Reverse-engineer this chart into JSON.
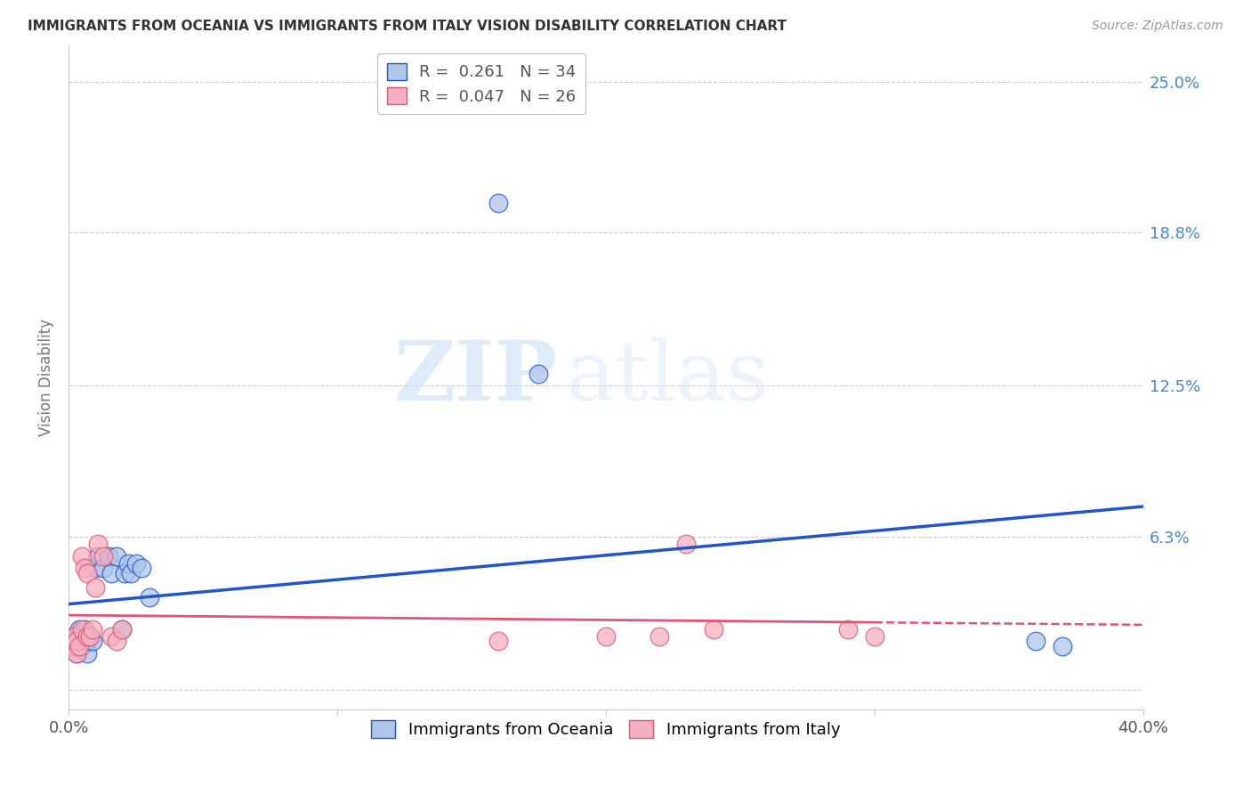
{
  "title": "IMMIGRANTS FROM OCEANIA VS IMMIGRANTS FROM ITALY VISION DISABILITY CORRELATION CHART",
  "source": "Source: ZipAtlas.com",
  "xlabel": "",
  "ylabel": "Vision Disability",
  "xlim": [
    0.0,
    0.4
  ],
  "ylim": [
    -0.008,
    0.265
  ],
  "yticks": [
    0.0,
    0.063,
    0.125,
    0.188,
    0.25
  ],
  "ytick_labels": [
    "",
    "6.3%",
    "12.5%",
    "18.8%",
    "25.0%"
  ],
  "xticks": [
    0.0,
    0.1,
    0.2,
    0.3,
    0.4
  ],
  "xtick_labels": [
    "0.0%",
    "",
    "",
    "",
    "40.0%"
  ],
  "r_oceania": 0.261,
  "n_oceania": 34,
  "r_italy": 0.047,
  "n_italy": 26,
  "color_oceania": "#aec6e8",
  "color_italy": "#f4afc0",
  "line_color_oceania": "#2255cc",
  "line_color_italy": "#e05575",
  "oceania_x": [
    0.001,
    0.002,
    0.002,
    0.003,
    0.003,
    0.003,
    0.004,
    0.004,
    0.005,
    0.005,
    0.005,
    0.006,
    0.006,
    0.007,
    0.007,
    0.008,
    0.009,
    0.01,
    0.011,
    0.013,
    0.015,
    0.016,
    0.018,
    0.02,
    0.021,
    0.022,
    0.023,
    0.025,
    0.027,
    0.03,
    0.16,
    0.175,
    0.36,
    0.37
  ],
  "oceania_y": [
    0.018,
    0.02,
    0.022,
    0.015,
    0.018,
    0.022,
    0.02,
    0.025,
    0.018,
    0.02,
    0.022,
    0.022,
    0.025,
    0.015,
    0.02,
    0.022,
    0.02,
    0.05,
    0.055,
    0.05,
    0.055,
    0.048,
    0.055,
    0.025,
    0.048,
    0.052,
    0.048,
    0.052,
    0.05,
    0.038,
    0.2,
    0.13,
    0.02,
    0.018
  ],
  "italy_x": [
    0.001,
    0.002,
    0.002,
    0.003,
    0.003,
    0.004,
    0.005,
    0.005,
    0.006,
    0.007,
    0.007,
    0.008,
    0.009,
    0.01,
    0.011,
    0.013,
    0.016,
    0.018,
    0.02,
    0.16,
    0.2,
    0.22,
    0.23,
    0.24,
    0.29,
    0.3
  ],
  "italy_y": [
    0.02,
    0.018,
    0.022,
    0.015,
    0.02,
    0.018,
    0.055,
    0.025,
    0.05,
    0.022,
    0.048,
    0.022,
    0.025,
    0.042,
    0.06,
    0.055,
    0.022,
    0.02,
    0.025,
    0.02,
    0.022,
    0.022,
    0.06,
    0.025,
    0.025,
    0.022
  ],
  "watermark_zip": "ZIP",
  "watermark_atlas": "atlas",
  "background_color": "#ffffff",
  "grid_color": "#cccccc"
}
